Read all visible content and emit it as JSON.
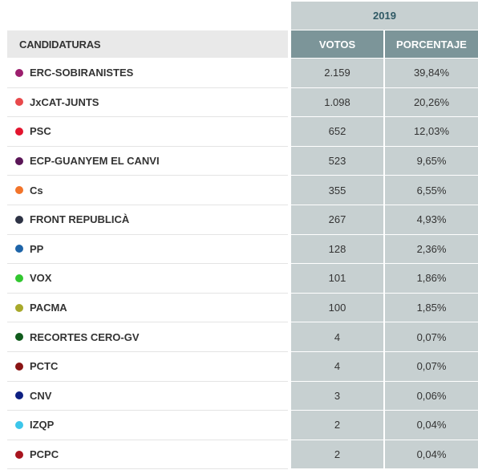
{
  "year": "2019",
  "headers": {
    "candidaturas": "CANDIDATURAS",
    "votos": "VOTOS",
    "porcentaje": "PORCENTAJE"
  },
  "rows": [
    {
      "name": "ERC-SOBIRANISTES",
      "votos": "2.159",
      "pct": "39,84%",
      "color": "#9c1f6e"
    },
    {
      "name": "JxCAT-JUNTS",
      "votos": "1.098",
      "pct": "20,26%",
      "color": "#e8494b"
    },
    {
      "name": "PSC",
      "votos": "652",
      "pct": "12,03%",
      "color": "#e3142e"
    },
    {
      "name": "ECP-GUANYEM EL CANVI",
      "votos": "523",
      "pct": "9,65%",
      "color": "#5a1657"
    },
    {
      "name": "Cs",
      "votos": "355",
      "pct": "6,55%",
      "color": "#f2742a"
    },
    {
      "name": "FRONT REPUBLICÀ",
      "votos": "267",
      "pct": "4,93%",
      "color": "#2e3345"
    },
    {
      "name": "PP",
      "votos": "128",
      "pct": "2,36%",
      "color": "#1e64a8"
    },
    {
      "name": "VOX",
      "votos": "101",
      "pct": "1,86%",
      "color": "#32c730"
    },
    {
      "name": "PACMA",
      "votos": "100",
      "pct": "1,85%",
      "color": "#a8a92b"
    },
    {
      "name": "RECORTES CERO-GV",
      "votos": "4",
      "pct": "0,07%",
      "color": "#0f5b1c"
    },
    {
      "name": "PCTC",
      "votos": "4",
      "pct": "0,07%",
      "color": "#8a1414"
    },
    {
      "name": "CNV",
      "votos": "3",
      "pct": "0,06%",
      "color": "#0d1f82"
    },
    {
      "name": "IZQP",
      "votos": "2",
      "pct": "0,04%",
      "color": "#3cc6ea"
    },
    {
      "name": "PCPC",
      "votos": "2",
      "pct": "0,04%",
      "color": "#a8141e"
    }
  ]
}
